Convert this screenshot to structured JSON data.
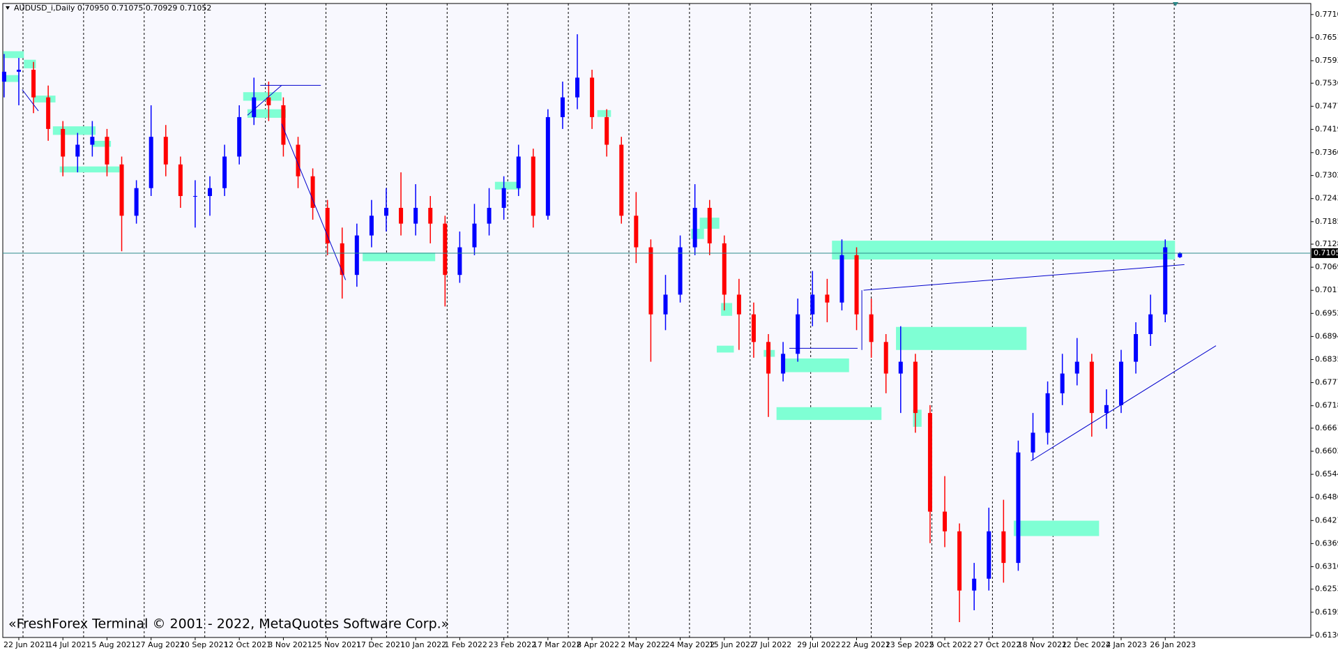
{
  "chart_data": {
    "type": "candlestick",
    "title": "AUDUSD_i,Daily  0.70950 0.71075 0.70929 0.71052",
    "watermark": "«FreshForex Terminal © 2001 - 2022, MetaQuotes Software Corp.»",
    "up_color": "#0000ff",
    "down_color": "#ff0000",
    "current_price": 0.71052,
    "ylim": [
      0.6131,
      0.7738
    ],
    "yticks": [
      {
        "value": 0.771,
        "label": "0.77100"
      },
      {
        "value": 0.76515,
        "label": "0.76515"
      },
      {
        "value": 0.7593,
        "label": "0.75930"
      },
      {
        "value": 0.7536,
        "label": "0.75360"
      },
      {
        "value": 0.74775,
        "label": "0.74775"
      },
      {
        "value": 0.7419,
        "label": "0.74190"
      },
      {
        "value": 0.736,
        "label": "0.73600"
      },
      {
        "value": 0.7302,
        "label": "0.73020"
      },
      {
        "value": 0.72435,
        "label": "0.72435"
      },
      {
        "value": 0.7185,
        "label": "0.71850"
      },
      {
        "value": 0.7128,
        "label": "0.71280"
      },
      {
        "value": 0.70695,
        "label": "0.70695"
      },
      {
        "value": 0.7011,
        "label": "0.70110"
      },
      {
        "value": 0.69525,
        "label": "0.69525"
      },
      {
        "value": 0.6894,
        "label": "0.68940"
      },
      {
        "value": 0.68355,
        "label": "0.68355"
      },
      {
        "value": 0.6777,
        "label": "0.67770"
      },
      {
        "value": 0.67185,
        "label": "0.67185"
      },
      {
        "value": 0.66615,
        "label": "0.66615"
      },
      {
        "value": 0.6603,
        "label": "0.66030"
      },
      {
        "value": 0.65445,
        "label": "0.65445"
      },
      {
        "value": 0.6486,
        "label": "0.64860"
      },
      {
        "value": 0.64275,
        "label": "0.64275"
      },
      {
        "value": 0.6369,
        "label": "0.63690"
      },
      {
        "value": 0.63105,
        "label": "0.63105"
      },
      {
        "value": 0.62535,
        "label": "0.62535"
      },
      {
        "value": 0.6195,
        "label": "0.61950"
      },
      {
        "value": 0.61365,
        "label": "0.61365"
      }
    ],
    "categories": [
      null,
      "22 Jun 2021",
      null,
      null,
      "14 Jul 2021",
      null,
      null,
      "5 Aug 2021",
      null,
      null,
      "27 Aug 2021",
      null,
      null,
      "20 Sep 2021",
      null,
      null,
      "12 Oct 2021",
      null,
      null,
      "3 Nov 2021",
      null,
      null,
      "25 Nov 2021",
      null,
      null,
      "17 Dec 2021",
      null,
      null,
      "10 Jan 2022",
      null,
      null,
      "1 Feb 2022",
      null,
      null,
      "23 Feb 2022",
      null,
      null,
      "17 Mar 2022",
      null,
      null,
      "8 Apr 2022",
      null,
      null,
      "2 May 2022",
      null,
      null,
      "24 May 2022",
      null,
      null,
      "15 Jun 2022",
      null,
      null,
      "7 Jul 2022",
      null,
      null,
      "29 Jul 2022",
      null,
      null,
      "22 Aug 2022",
      null,
      null,
      "13 Sep 2022",
      null,
      null,
      "5 Oct 2022",
      null,
      null,
      "27 Oct 2022",
      null,
      null,
      "18 Nov 2022",
      null,
      null,
      "12 Dec 2022",
      null,
      null,
      "4 Jan 2023",
      null,
      null,
      "26 Jan 2023",
      null
    ],
    "ohlc": [
      [
        0.754,
        0.761,
        0.75,
        0.7565
      ],
      [
        0.7565,
        0.76,
        0.748,
        0.757
      ],
      [
        0.757,
        0.759,
        0.746,
        0.75
      ],
      [
        0.75,
        0.753,
        0.739,
        0.742
      ],
      [
        0.742,
        0.744,
        0.73,
        0.735
      ],
      [
        0.735,
        0.741,
        0.731,
        0.738
      ],
      [
        0.738,
        0.744,
        0.735,
        0.74
      ],
      [
        0.74,
        0.742,
        0.73,
        0.733
      ],
      [
        0.733,
        0.735,
        0.711,
        0.72
      ],
      [
        0.72,
        0.729,
        0.718,
        0.727
      ],
      [
        0.727,
        0.748,
        0.725,
        0.74
      ],
      [
        0.74,
        0.743,
        0.73,
        0.733
      ],
      [
        0.733,
        0.735,
        0.722,
        0.725
      ],
      [
        0.725,
        0.729,
        0.717,
        0.725
      ],
      [
        0.725,
        0.73,
        0.72,
        0.727
      ],
      [
        0.727,
        0.738,
        0.725,
        0.735
      ],
      [
        0.735,
        0.748,
        0.733,
        0.745
      ],
      [
        0.745,
        0.755,
        0.743,
        0.75
      ],
      [
        0.75,
        0.754,
        0.744,
        0.748
      ],
      [
        0.748,
        0.75,
        0.735,
        0.738
      ],
      [
        0.738,
        0.74,
        0.727,
        0.73
      ],
      [
        0.73,
        0.732,
        0.719,
        0.722
      ],
      [
        0.722,
        0.724,
        0.71,
        0.713
      ],
      [
        0.713,
        0.717,
        0.699,
        0.705
      ],
      [
        0.705,
        0.718,
        0.702,
        0.715
      ],
      [
        0.715,
        0.724,
        0.712,
        0.72
      ],
      [
        0.72,
        0.727,
        0.716,
        0.722
      ],
      [
        0.722,
        0.731,
        0.715,
        0.718
      ],
      [
        0.718,
        0.728,
        0.715,
        0.722
      ],
      [
        0.722,
        0.725,
        0.713,
        0.718
      ],
      [
        0.718,
        0.72,
        0.697,
        0.705
      ],
      [
        0.705,
        0.716,
        0.703,
        0.712
      ],
      [
        0.712,
        0.723,
        0.71,
        0.718
      ],
      [
        0.718,
        0.727,
        0.715,
        0.722
      ],
      [
        0.722,
        0.73,
        0.719,
        0.727
      ],
      [
        0.727,
        0.738,
        0.725,
        0.735
      ],
      [
        0.735,
        0.737,
        0.717,
        0.72
      ],
      [
        0.72,
        0.747,
        0.719,
        0.745
      ],
      [
        0.745,
        0.754,
        0.742,
        0.75
      ],
      [
        0.75,
        0.766,
        0.747,
        0.755
      ],
      [
        0.755,
        0.757,
        0.742,
        0.745
      ],
      [
        0.745,
        0.747,
        0.735,
        0.738
      ],
      [
        0.738,
        0.74,
        0.718,
        0.72
      ],
      [
        0.72,
        0.726,
        0.708,
        0.712
      ],
      [
        0.712,
        0.714,
        0.683,
        0.695
      ],
      [
        0.695,
        0.705,
        0.691,
        0.7
      ],
      [
        0.7,
        0.715,
        0.698,
        0.712
      ],
      [
        0.712,
        0.728,
        0.71,
        0.722
      ],
      [
        0.722,
        0.724,
        0.71,
        0.713
      ],
      [
        0.713,
        0.715,
        0.696,
        0.7
      ],
      [
        0.7,
        0.704,
        0.686,
        0.695
      ],
      [
        0.695,
        0.698,
        0.684,
        0.688
      ],
      [
        0.688,
        0.69,
        0.669,
        0.68
      ],
      [
        0.68,
        0.688,
        0.678,
        0.685
      ],
      [
        0.685,
        0.699,
        0.683,
        0.695
      ],
      [
        0.695,
        0.706,
        0.692,
        0.7
      ],
      [
        0.7,
        0.704,
        0.693,
        0.698
      ],
      [
        0.698,
        0.714,
        0.696,
        0.71
      ],
      [
        0.71,
        0.712,
        0.691,
        0.695
      ],
      [
        0.695,
        0.699,
        0.684,
        0.688
      ],
      [
        0.688,
        0.69,
        0.675,
        0.68
      ],
      [
        0.68,
        0.692,
        0.67,
        0.683
      ],
      [
        0.683,
        0.685,
        0.665,
        0.67
      ],
      [
        0.67,
        0.672,
        0.637,
        0.645
      ],
      [
        0.645,
        0.654,
        0.636,
        0.64
      ],
      [
        0.64,
        0.642,
        0.617,
        0.625
      ],
      [
        0.625,
        0.632,
        0.62,
        0.628
      ],
      [
        0.628,
        0.646,
        0.625,
        0.64
      ],
      [
        0.64,
        0.648,
        0.627,
        0.632
      ],
      [
        0.632,
        0.663,
        0.63,
        0.66
      ],
      [
        0.66,
        0.67,
        0.658,
        0.665
      ],
      [
        0.665,
        0.678,
        0.662,
        0.675
      ],
      [
        0.675,
        0.685,
        0.672,
        0.68
      ],
      [
        0.68,
        0.689,
        0.677,
        0.683
      ],
      [
        0.683,
        0.685,
        0.664,
        0.67
      ],
      [
        0.67,
        0.676,
        0.666,
        0.672
      ],
      [
        0.672,
        0.686,
        0.67,
        0.683
      ],
      [
        0.683,
        0.693,
        0.68,
        0.69
      ],
      [
        0.69,
        0.7,
        0.687,
        0.695
      ],
      [
        0.695,
        0.714,
        0.693,
        0.712
      ],
      [
        0.7095,
        0.71075,
        0.70929,
        0.71052
      ]
    ]
  }
}
